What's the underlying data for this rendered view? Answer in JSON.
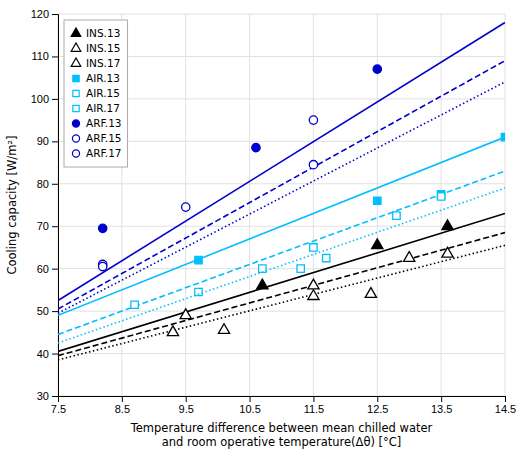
{
  "chart_data": {
    "type": "scatter",
    "xlabel": "Temperature difference between mean chilled water\nand room operative temperature(Δθ) [°C]",
    "ylabel": "Cooling capacity [W/m²]",
    "xlim": [
      7.5,
      14.5
    ],
    "ylim": [
      30,
      120
    ],
    "xticks": [
      7.5,
      8.5,
      9.5,
      10.5,
      11.5,
      12.5,
      13.5,
      14.5
    ],
    "yticks": [
      30,
      40,
      50,
      60,
      70,
      80,
      90,
      100,
      110,
      120
    ],
    "grid": true,
    "legend": "upper left",
    "series": [
      {
        "name": "INS.13",
        "color": "#000000",
        "line_style": "solid",
        "marker": "filled-triangle",
        "line_x": [
          7.5,
          14.5
        ],
        "line_values": [
          40.5,
          73.0
        ],
        "x": [
          10.7,
          12.5,
          13.6
        ],
        "values": [
          56.0,
          65.5,
          70.0
        ]
      },
      {
        "name": "INS.15",
        "color": "#000000",
        "line_style": "dashed",
        "marker": "open-triangle",
        "line_x": [
          7.5,
          14.5
        ],
        "line_values": [
          39.5,
          68.5
        ],
        "x": [
          9.5,
          11.5,
          13.0,
          13.6
        ],
        "values": [
          49.0,
          56.0,
          62.5,
          63.5
        ]
      },
      {
        "name": "INS.17",
        "color": "#000000",
        "line_style": "dotted",
        "marker": "open-triangle",
        "line_x": [
          7.5,
          14.5
        ],
        "line_values": [
          38.5,
          65.5
        ],
        "x": [
          9.3,
          10.1,
          11.5,
          12.4
        ],
        "values": [
          45.0,
          45.5,
          53.5,
          54.0
        ]
      },
      {
        "name": "AIR.13",
        "color": "#00bfff",
        "line_style": "solid",
        "marker": "filled-square",
        "line_x": [
          7.5,
          14.5
        ],
        "line_values": [
          49.0,
          91.0
        ],
        "x": [
          9.7,
          12.5,
          13.5,
          14.5
        ],
        "values": [
          62.0,
          76.0,
          77.5,
          91.0
        ]
      },
      {
        "name": "AIR.15",
        "color": "#00bfff",
        "line_style": "dashed",
        "marker": "open-square",
        "line_x": [
          7.5,
          14.5
        ],
        "line_values": [
          44.5,
          83.0
        ],
        "x": [
          9.7,
          10.7,
          11.5,
          12.8,
          13.5
        ],
        "values": [
          54.5,
          60.0,
          65.0,
          72.5,
          77.0
        ]
      },
      {
        "name": "AIR.17",
        "color": "#00bfff",
        "line_style": "dotted",
        "marker": "open-square",
        "line_x": [
          7.5,
          14.5
        ],
        "line_values": [
          42.5,
          79.0
        ],
        "x": [
          8.7,
          11.3,
          11.7
        ],
        "values": [
          51.5,
          60.0,
          62.5
        ]
      },
      {
        "name": "ARF.13",
        "color": "#0000cc",
        "line_style": "solid",
        "marker": "filled-circle",
        "line_x": [
          7.5,
          14.5
        ],
        "line_values": [
          52.5,
          118.0
        ],
        "x": [
          8.2,
          10.6,
          12.5
        ],
        "values": [
          69.5,
          88.5,
          107.0
        ]
      },
      {
        "name": "ARF.15",
        "color": "#0000cc",
        "line_style": "dashed",
        "marker": "open-circle",
        "line_x": [
          7.5,
          14.5
        ],
        "line_values": [
          50.5,
          109.0
        ],
        "x": [
          8.2,
          9.5,
          11.5
        ],
        "values": [
          61.0,
          74.5,
          95.0
        ]
      },
      {
        "name": "ARF.17",
        "color": "#0000cc",
        "line_style": "dotted",
        "marker": "open-circle",
        "line_x": [
          7.5,
          14.5
        ],
        "line_values": [
          49.5,
          104.0
        ],
        "x": [
          8.2,
          11.5
        ],
        "values": [
          60.5,
          84.5
        ]
      }
    ]
  }
}
